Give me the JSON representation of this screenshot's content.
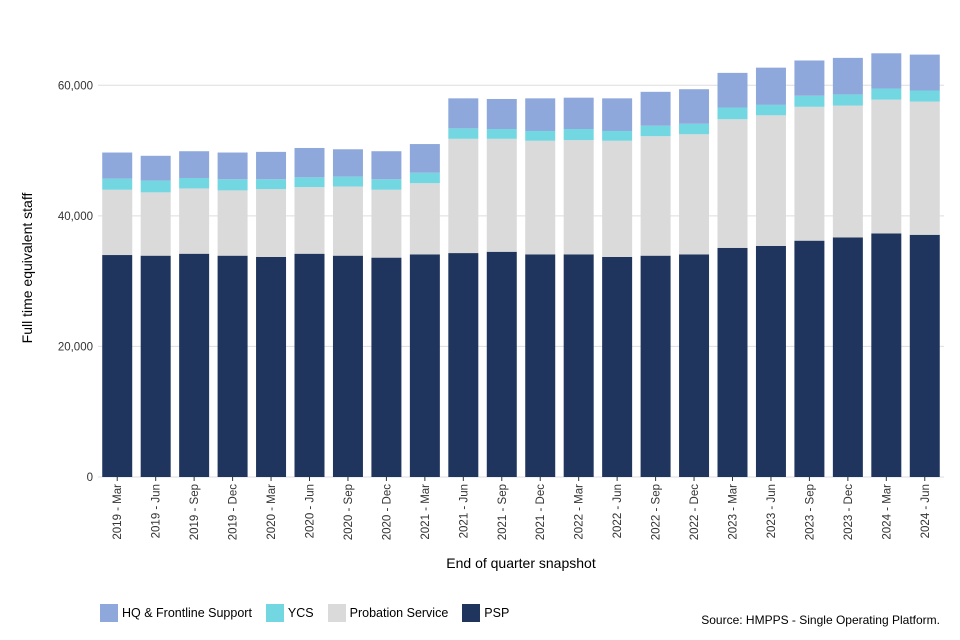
{
  "chart_data": {
    "type": "bar",
    "stacked": true,
    "xlabel": "End of quarter snapshot",
    "ylabel": "Full time equivalent staff",
    "ylim": [
      0,
      70000
    ],
    "yticks": [
      0,
      20000,
      40000,
      60000
    ],
    "ytick_labels": [
      "0",
      "20,000",
      "40,000",
      "60,000"
    ],
    "grid": true,
    "legend_position": "bottom-left",
    "categories": [
      "2019 - Mar",
      "2019 - Jun",
      "2019 - Sep",
      "2019 - Dec",
      "2020 - Mar",
      "2020 - Jun",
      "2020 - Sep",
      "2020 - Dec",
      "2021 - Mar",
      "2021 - Jun",
      "2021 - Sep",
      "2021 - Dec",
      "2022 - Mar",
      "2022 - Jun",
      "2022 - Sep",
      "2022 - Dec",
      "2023 - Mar",
      "2023 - Jun",
      "2023 - Sep",
      "2023 - Dec",
      "2024 - Mar",
      "2024 - Jun"
    ],
    "series": [
      {
        "name": "PSP",
        "color": "#1f355e",
        "values": [
          34000,
          33900,
          34200,
          33900,
          33700,
          34200,
          33900,
          33600,
          34100,
          34300,
          34500,
          34100,
          34100,
          33700,
          33900,
          34100,
          35100,
          35400,
          36200,
          36700,
          37300,
          37100
        ]
      },
      {
        "name": "Probation Service",
        "color": "#dadada",
        "values": [
          10000,
          9700,
          10000,
          10000,
          10400,
          10200,
          10600,
          10400,
          10900,
          17500,
          17300,
          17400,
          17500,
          17800,
          18300,
          18400,
          19700,
          20000,
          20500,
          20200,
          20500,
          20400
        ]
      },
      {
        "name": "YCS",
        "color": "#72d7e1",
        "values": [
          1700,
          1800,
          1600,
          1700,
          1500,
          1500,
          1500,
          1600,
          1600,
          1600,
          1500,
          1500,
          1700,
          1500,
          1600,
          1600,
          1800,
          1600,
          1700,
          1700,
          1700,
          1700
        ]
      },
      {
        "name": "HQ & Frontline Support",
        "color": "#8fa8db",
        "values": [
          4000,
          3800,
          4100,
          4100,
          4200,
          4500,
          4200,
          4300,
          4400,
          4600,
          4600,
          5000,
          4800,
          5000,
          5200,
          5300,
          5300,
          5700,
          5400,
          5600,
          5400,
          5500
        ]
      }
    ],
    "legend_order": [
      "HQ & Frontline Support",
      "YCS",
      "Probation Service",
      "PSP"
    ],
    "source": "Source: HMPPS - Single Operating Platform."
  }
}
